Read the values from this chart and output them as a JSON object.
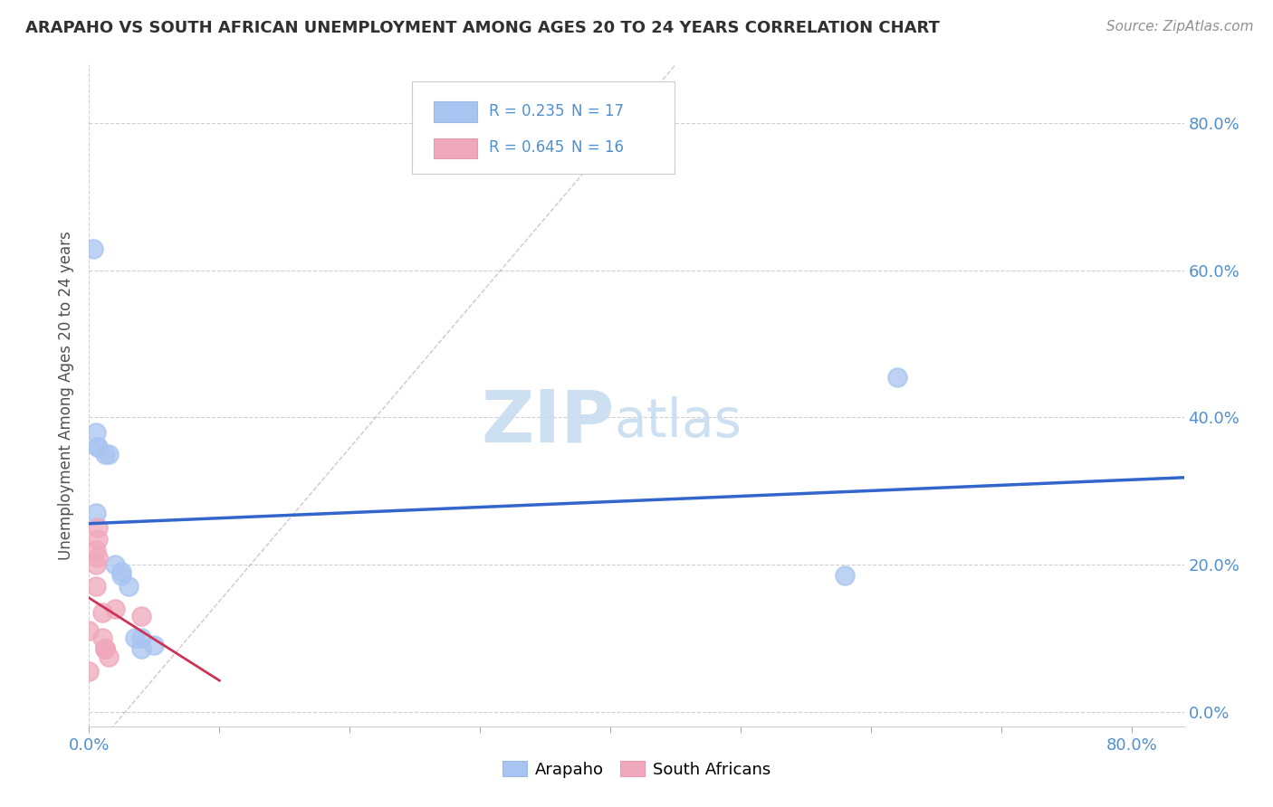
{
  "title": "ARAPAHO VS SOUTH AFRICAN UNEMPLOYMENT AMONG AGES 20 TO 24 YEARS CORRELATION CHART",
  "source": "Source: ZipAtlas.com",
  "ylabel": "Unemployment Among Ages 20 to 24 years",
  "xlim": [
    0.0,
    0.84
  ],
  "ylim": [
    -0.02,
    0.88
  ],
  "xticks": [
    0.0,
    0.1,
    0.2,
    0.3,
    0.4,
    0.5,
    0.6,
    0.7,
    0.8
  ],
  "yticks": [
    0.0,
    0.2,
    0.4,
    0.6,
    0.8
  ],
  "ytick_labels_right": [
    "0.0%",
    "20.0%",
    "40.0%",
    "60.0%",
    "80.0%"
  ],
  "xtick_labels": [
    "0.0%",
    "",
    "",
    "",
    "",
    "",
    "",
    "",
    "80.0%"
  ],
  "arapaho_x": [
    0.003,
    0.005,
    0.007,
    0.007,
    0.012,
    0.015,
    0.02,
    0.025,
    0.025,
    0.03,
    0.035,
    0.04,
    0.04,
    0.05,
    0.58,
    0.62,
    0.005
  ],
  "arapaho_y": [
    0.63,
    0.38,
    0.36,
    0.36,
    0.35,
    0.35,
    0.2,
    0.19,
    0.185,
    0.17,
    0.1,
    0.1,
    0.085,
    0.09,
    0.185,
    0.455,
    0.27
  ],
  "sa_x": [
    0.0,
    0.0,
    0.005,
    0.005,
    0.005,
    0.007,
    0.007,
    0.007,
    0.01,
    0.01,
    0.012,
    0.012,
    0.012,
    0.015,
    0.02,
    0.04
  ],
  "sa_y": [
    0.055,
    0.11,
    0.2,
    0.22,
    0.17,
    0.25,
    0.235,
    0.21,
    0.1,
    0.135,
    0.085,
    0.085,
    0.085,
    0.075,
    0.14,
    0.13
  ],
  "arapaho_R": 0.235,
  "arapaho_N": 17,
  "sa_R": 0.645,
  "sa_N": 16,
  "arapaho_color": "#a8c4f0",
  "sa_color": "#f0a8bc",
  "arapaho_line_color": "#3366cc",
  "sa_line_color": "#cc3355",
  "ref_line_color": "#c8a8b8",
  "grid_color": "#d0d0d0",
  "title_color": "#303030",
  "axis_label_color": "#505050",
  "tick_label_color": "#5090d0",
  "watermark_color": "#c8ddf0",
  "background_color": "#ffffff"
}
